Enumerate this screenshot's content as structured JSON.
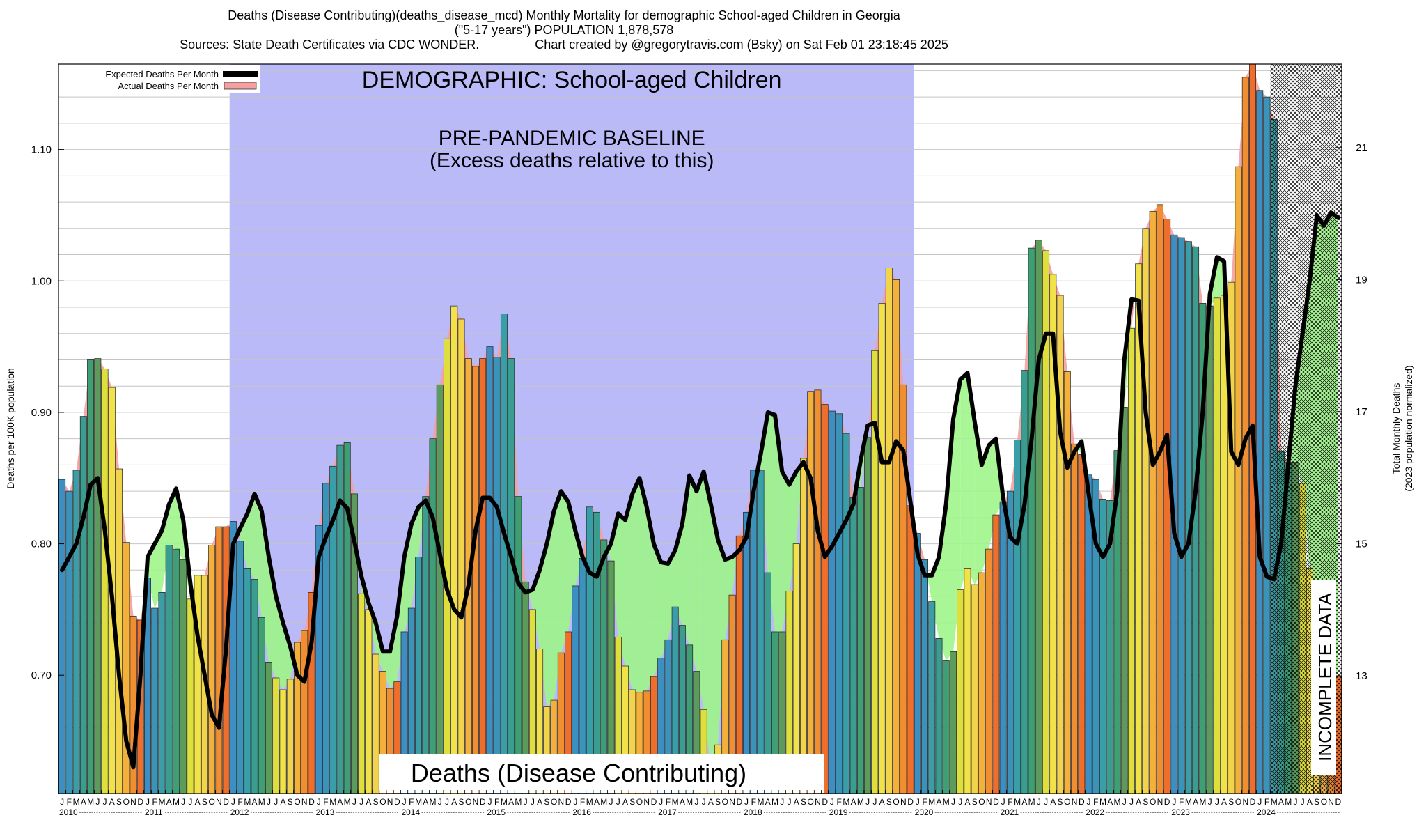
{
  "title": {
    "line1": "Deaths (Disease Contributing)(deaths_disease_mcd) Monthly Mortality for demographic School-aged Children in Georgia",
    "line2": "(\"5-17 years\") POPULATION 1,878,578",
    "line3": "Sources: State Death Certificates via CDC WONDER.                Chart created by @gregorytravis.com (Bsky) on Sat Feb 01 23:18:45 2025"
  },
  "chart_data": {
    "type": "bar",
    "ylabel": "Deaths per 100K population",
    "y2label_line1": "Total Monthly Deaths",
    "y2label_line2": "(2023 population normalized)",
    "ylim": [
      0.61,
      1.165
    ],
    "y_ticks": [
      "0.70",
      "0.80",
      "0.90",
      "1.00",
      "1.10"
    ],
    "y2_ticks": [
      "13",
      "15",
      "17",
      "19",
      "21"
    ],
    "month_letters": [
      "J",
      "F",
      "M",
      "A",
      "M",
      "J",
      "J",
      "A",
      "S",
      "O",
      "N",
      "D"
    ],
    "years": [
      "2010",
      "2011",
      "2012",
      "2013",
      "2014",
      "2015",
      "2016",
      "2017",
      "2018",
      "2019",
      "2020",
      "2021",
      "2022",
      "2023",
      "2024"
    ],
    "legend": {
      "expected": "Expected Deaths Per Month",
      "actual": "Actual Deaths Per Month"
    },
    "annotations": {
      "demographic": "DEMOGRAPHIC: School-aged Children",
      "baseline_line1": "PRE-PANDEMIC BASELINE",
      "baseline_line2": "(Excess deaths relative to this)",
      "metric": "Deaths (Disease Contributing)",
      "incomplete": "INCOMPLETE DATA"
    },
    "baseline_range": [
      "2012-01",
      "2019-12"
    ],
    "incomplete_from": "2024-03",
    "actual": [
      0.849,
      0.84,
      0.856,
      0.897,
      0.94,
      0.941,
      0.933,
      0.919,
      0.857,
      0.801,
      0.745,
      0.742,
      0.774,
      0.751,
      0.763,
      0.799,
      0.796,
      0.788,
      0.758,
      0.776,
      0.776,
      0.799,
      0.813,
      0.813,
      0.817,
      0.802,
      0.781,
      0.773,
      0.744,
      0.71,
      0.698,
      0.689,
      0.697,
      0.725,
      0.734,
      0.763,
      0.814,
      0.846,
      0.859,
      0.875,
      0.877,
      0.838,
      0.762,
      0.75,
      0.716,
      0.703,
      0.69,
      0.695,
      0.733,
      0.751,
      0.79,
      0.836,
      0.88,
      0.921,
      0.956,
      0.981,
      0.971,
      0.941,
      0.935,
      0.941,
      0.95,
      0.942,
      0.975,
      0.941,
      0.836,
      0.771,
      0.75,
      0.72,
      0.676,
      0.681,
      0.717,
      0.733,
      0.768,
      0.789,
      0.828,
      0.824,
      0.803,
      0.787,
      0.729,
      0.707,
      0.689,
      0.687,
      0.688,
      0.699,
      0.713,
      0.727,
      0.752,
      0.738,
      0.723,
      0.703,
      0.674,
      0.63,
      0.647,
      0.727,
      0.761,
      0.806,
      0.824,
      0.856,
      0.856,
      0.778,
      0.733,
      0.733,
      0.764,
      0.8,
      0.865,
      0.916,
      0.917,
      0.906,
      0.901,
      0.899,
      0.884,
      0.835,
      0.843,
      0.881,
      0.947,
      0.983,
      1.01,
      1.001,
      0.921,
      0.829,
      0.808,
      0.788,
      0.756,
      0.728,
      0.711,
      0.718,
      0.765,
      0.781,
      0.769,
      0.778,
      0.796,
      0.822,
      0.832,
      0.84,
      0.879,
      0.932,
      1.025,
      1.031,
      1.023,
      1.005,
      0.989,
      0.931,
      0.876,
      0.868,
      0.853,
      0.849,
      0.834,
      0.833,
      0.871,
      0.904,
      0.964,
      1.013,
      1.04,
      1.053,
      1.058,
      1.047,
      1.035,
      1.033,
      1.03,
      1.026,
      0.983,
      0.981,
      0.987,
      0.989,
      0.999,
      1.087,
      1.155,
      1.165,
      1.145,
      1.14,
      1.123,
      0.87,
      0.862,
      0.862,
      0.846,
      0.781,
      0.757,
      0.742,
      0.712,
      0.699
    ],
    "expected": [
      0.78,
      0.79,
      0.8,
      0.82,
      0.845,
      0.85,
      0.81,
      0.76,
      0.7,
      0.65,
      0.63,
      0.7,
      0.79,
      0.8,
      0.81,
      0.83,
      0.842,
      0.818,
      0.77,
      0.73,
      0.7,
      0.67,
      0.66,
      0.72,
      0.8,
      0.812,
      0.823,
      0.838,
      0.825,
      0.79,
      0.76,
      0.74,
      0.722,
      0.7,
      0.695,
      0.725,
      0.79,
      0.805,
      0.818,
      0.833,
      0.827,
      0.802,
      0.775,
      0.755,
      0.74,
      0.718,
      0.718,
      0.745,
      0.79,
      0.815,
      0.828,
      0.833,
      0.82,
      0.792,
      0.765,
      0.75,
      0.744,
      0.768,
      0.81,
      0.835,
      0.835,
      0.828,
      0.808,
      0.79,
      0.77,
      0.763,
      0.765,
      0.78,
      0.8,
      0.825,
      0.84,
      0.832,
      0.81,
      0.79,
      0.778,
      0.775,
      0.79,
      0.8,
      0.823,
      0.818,
      0.838,
      0.85,
      0.828,
      0.8,
      0.786,
      0.785,
      0.795,
      0.815,
      0.852,
      0.84,
      0.855,
      0.83,
      0.803,
      0.788,
      0.79,
      0.795,
      0.805,
      0.84,
      0.868,
      0.9,
      0.898,
      0.855,
      0.845,
      0.855,
      0.862,
      0.85,
      0.81,
      0.79,
      0.798,
      0.808,
      0.818,
      0.83,
      0.863,
      0.89,
      0.892,
      0.862,
      0.862,
      0.878,
      0.871,
      0.832,
      0.792,
      0.776,
      0.776,
      0.79,
      0.83,
      0.895,
      0.925,
      0.93,
      0.893,
      0.86,
      0.875,
      0.88,
      0.835,
      0.805,
      0.8,
      0.83,
      0.88,
      0.94,
      0.96,
      0.96,
      0.885,
      0.858,
      0.87,
      0.878,
      0.838,
      0.8,
      0.79,
      0.8,
      0.84,
      0.94,
      0.986,
      0.985,
      0.9,
      0.86,
      0.87,
      0.883,
      0.808,
      0.79,
      0.8,
      0.84,
      0.9,
      0.99,
      1.018,
      1.015,
      0.87,
      0.86,
      0.88,
      0.89,
      0.79,
      0.775,
      0.773,
      0.8,
      0.86,
      0.92,
      0.96,
      1.0,
      1.05,
      1.042,
      1.052,
      1.048
    ]
  }
}
